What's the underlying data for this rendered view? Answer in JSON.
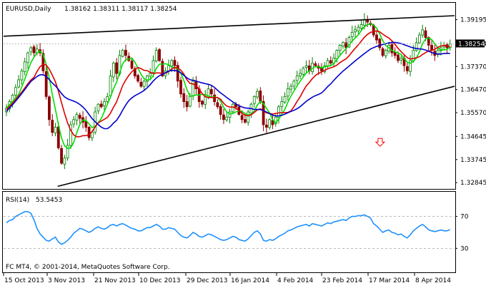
{
  "window": {
    "chart_label": "EURUSD,Daily",
    "ohlc_readout": "1.38162 1.38311 1.38117 1.38254",
    "rsi_label": "RSI(14)",
    "rsi_value": "53.5453",
    "footer": "FC MT4, © 2001-2014, MetaQuotes Software Corp.",
    "current_price_label": "1.38254"
  },
  "colors": {
    "bull_candle": "#008000",
    "bear_candle": "#8b0000",
    "fast_ma": "#00dd00",
    "mid_ma": "#dd0000",
    "slow_ma": "#0000cc",
    "trendline": "#000000",
    "rsi_line": "#1e90ff",
    "arrow": "#ff0000",
    "price_tag": "#000000"
  },
  "chart_data": [
    {
      "type": "candlestick",
      "title": "EURUSD,Daily",
      "ylim": [
        1.326,
        1.3985
      ],
      "y_ticks": [
        "1.39195",
        "1.38254",
        "1.37370",
        "1.36470",
        "1.35570",
        "1.34645",
        "1.33745",
        "1.32845"
      ],
      "x_ticks": [
        "15 Oct 2013",
        "3 Nov 2013",
        "21 Nov 2013",
        "10 Dec 2013",
        "29 Dec 2013",
        "16 Jan 2014",
        "4 Feb 2014",
        "23 Feb 2014",
        "17 Mar 2014",
        "8 Apr 2014"
      ],
      "grid": false,
      "close_series": [
        1.3575,
        1.36,
        1.3625,
        1.3655,
        1.3685,
        1.372,
        1.3755,
        1.379,
        1.381,
        1.379,
        1.3805,
        1.379,
        1.372,
        1.362,
        1.353,
        1.348,
        1.35,
        1.342,
        1.336,
        1.338,
        1.343,
        1.351,
        1.353,
        1.355,
        1.3535,
        1.352,
        1.35,
        1.346,
        1.348,
        1.356,
        1.359,
        1.358,
        1.36,
        1.362,
        1.37,
        1.375,
        1.371,
        1.378,
        1.38,
        1.378,
        1.376,
        1.373,
        1.37,
        1.368,
        1.366,
        1.368,
        1.37,
        1.371,
        1.376,
        1.38,
        1.376,
        1.37,
        1.372,
        1.374,
        1.376,
        1.374,
        1.368,
        1.363,
        1.36,
        1.358,
        1.362,
        1.368,
        1.365,
        1.36,
        1.359,
        1.362,
        1.365,
        1.363,
        1.36,
        1.358,
        1.355,
        1.353,
        1.354,
        1.356,
        1.359,
        1.358,
        1.355,
        1.353,
        1.352,
        1.356,
        1.359,
        1.362,
        1.364,
        1.36,
        1.351,
        1.35,
        1.353,
        1.351,
        1.354,
        1.358,
        1.36,
        1.362,
        1.365,
        1.366,
        1.368,
        1.37,
        1.371,
        1.373,
        1.374,
        1.372,
        1.375,
        1.374,
        1.373,
        1.372,
        1.374,
        1.376,
        1.375,
        1.377,
        1.38,
        1.382,
        1.383,
        1.381,
        1.385,
        1.387,
        1.388,
        1.389,
        1.39,
        1.392,
        1.391,
        1.39,
        1.386,
        1.384,
        1.381,
        1.378,
        1.38,
        1.382,
        1.379,
        1.378,
        1.376,
        1.377,
        1.374,
        1.372,
        1.376,
        1.38,
        1.383,
        1.386,
        1.388,
        1.385,
        1.382,
        1.38,
        1.378,
        1.38,
        1.381,
        1.382,
        1.381,
        1.3825
      ],
      "overlays": [
        {
          "kind": "upper-trendline",
          "x": [
            0,
            1
          ],
          "y": [
            1.3855,
            1.3935
          ]
        },
        {
          "kind": "lower-trendline",
          "x": [
            0.12,
            1
          ],
          "y": [
            1.327,
            1.366
          ]
        },
        {
          "kind": "current-price",
          "y": 1.38254
        }
      ],
      "series": [
        {
          "name": "fast_ma",
          "values_from": "close_series",
          "period": 5
        },
        {
          "name": "mid_ma",
          "values_from": "close_series",
          "period": 10
        },
        {
          "name": "slow_ma",
          "values_from": "close_series",
          "period": 20
        }
      ],
      "annotations": [
        {
          "kind": "down-arrow",
          "x": 0.835,
          "y": 1.344
        }
      ]
    },
    {
      "type": "line",
      "title": "RSI(14)",
      "ylim": [
        0,
        100
      ],
      "y_ticks": [
        "70",
        "30"
      ],
      "levels": [
        70,
        30
      ],
      "series": [
        {
          "name": "RSI",
          "values": [
            62,
            65,
            66,
            70,
            72,
            74,
            76,
            76,
            74,
            66,
            55,
            48,
            44,
            40,
            39,
            42,
            44,
            38,
            35,
            37,
            40,
            44,
            49,
            52,
            55,
            54,
            52,
            50,
            52,
            55,
            57,
            55,
            54,
            56,
            59,
            60,
            58,
            60,
            61,
            59,
            57,
            55,
            54,
            52,
            52,
            54,
            56,
            56,
            58,
            60,
            58,
            54,
            54,
            56,
            55,
            54,
            50,
            46,
            44,
            43,
            46,
            50,
            48,
            45,
            44,
            46,
            48,
            47,
            45,
            43,
            41,
            40,
            41,
            43,
            45,
            44,
            41,
            40,
            39,
            42,
            46,
            50,
            52,
            48,
            40,
            39,
            41,
            40,
            42,
            45,
            47,
            49,
            52,
            53,
            55,
            57,
            58,
            59,
            60,
            58,
            61,
            60,
            59,
            58,
            60,
            62,
            61,
            63,
            64,
            65,
            66,
            65,
            68,
            70,
            70,
            71,
            71,
            72,
            70,
            68,
            61,
            58,
            54,
            50,
            52,
            53,
            50,
            49,
            47,
            48,
            45,
            43,
            47,
            52,
            55,
            58,
            60,
            57,
            53,
            52,
            51,
            52,
            53,
            52,
            52,
            53.5
          ]
        }
      ]
    }
  ]
}
